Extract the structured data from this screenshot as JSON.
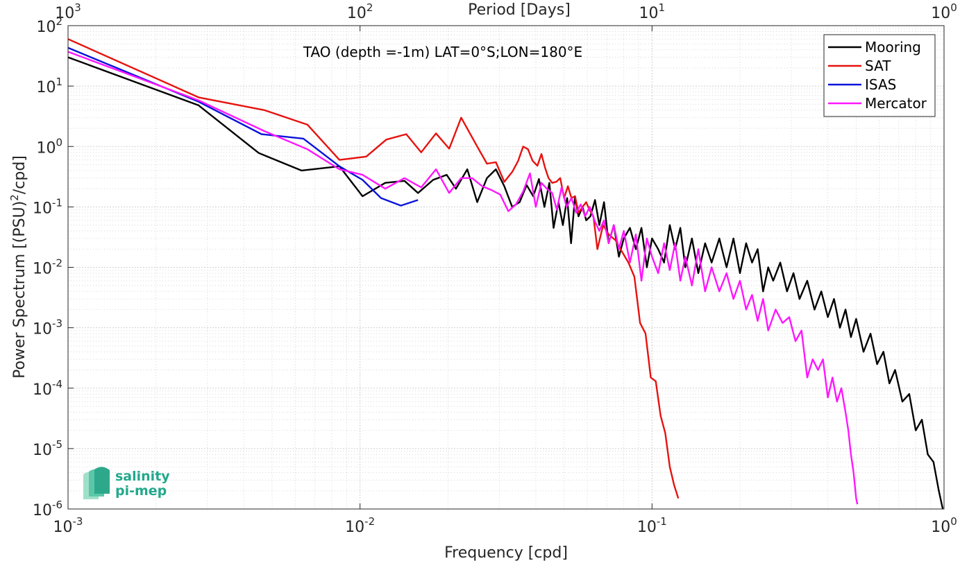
{
  "chart_data": {
    "type": "line",
    "title": "TAO (depth =-1m) LAT=0°S;LON=180°E",
    "xlabel": "Frequency [cpd]",
    "ylabel": "Power Spectrum [(PSU)^2/cpd]",
    "top_xlabel": "Period [Days]",
    "x_scale": "log",
    "y_scale": "log",
    "xlim": [
      0.001,
      1
    ],
    "ylim": [
      1e-06,
      100
    ],
    "grid": true,
    "legend_position": "top-right",
    "x_ticks": [
      {
        "base": "10",
        "exp": "-3",
        "value": 0.001
      },
      {
        "base": "10",
        "exp": "-2",
        "value": 0.01
      },
      {
        "base": "10",
        "exp": "-1",
        "value": 0.1
      },
      {
        "base": "10",
        "exp": "0",
        "value": 1
      }
    ],
    "top_ticks": [
      {
        "base": "10",
        "exp": "3",
        "value": 1000
      },
      {
        "base": "10",
        "exp": "2",
        "value": 100
      },
      {
        "base": "10",
        "exp": "1",
        "value": 10
      },
      {
        "base": "10",
        "exp": "0",
        "value": 1
      }
    ],
    "y_ticks": [
      {
        "base": "10",
        "exp": "2",
        "value": 100
      },
      {
        "base": "10",
        "exp": "1",
        "value": 10
      },
      {
        "base": "10",
        "exp": "0",
        "value": 1
      },
      {
        "base": "10",
        "exp": "-1",
        "value": 0.1
      },
      {
        "base": "10",
        "exp": "-2",
        "value": 0.01
      },
      {
        "base": "10",
        "exp": "-3",
        "value": 0.001
      },
      {
        "base": "10",
        "exp": "-4",
        "value": 0.0001
      },
      {
        "base": "10",
        "exp": "-5",
        "value": 1e-05
      },
      {
        "base": "10",
        "exp": "-6",
        "value": 1e-06
      }
    ],
    "series": [
      {
        "name": "Mooring",
        "color": "#000000",
        "points": [
          [
            0.001,
            30
          ],
          [
            0.0028,
            4.8
          ],
          [
            0.0045,
            0.78
          ],
          [
            0.0063,
            0.4
          ],
          [
            0.0085,
            0.47
          ],
          [
            0.0102,
            0.15
          ],
          [
            0.0122,
            0.25
          ],
          [
            0.0142,
            0.27
          ],
          [
            0.0158,
            0.17
          ],
          [
            0.0178,
            0.28
          ],
          [
            0.0198,
            0.34
          ],
          [
            0.0213,
            0.2
          ],
          [
            0.0233,
            0.42
          ],
          [
            0.0252,
            0.12
          ],
          [
            0.0272,
            0.3
          ],
          [
            0.0292,
            0.42
          ],
          [
            0.0312,
            0.22
          ],
          [
            0.0332,
            0.1
          ],
          [
            0.0352,
            0.12
          ],
          [
            0.0372,
            0.23
          ],
          [
            0.0392,
            0.15
          ],
          [
            0.041,
            0.29
          ],
          [
            0.0428,
            0.1
          ],
          [
            0.0445,
            0.25
          ],
          [
            0.046,
            0.045
          ],
          [
            0.0478,
            0.12
          ],
          [
            0.0495,
            0.05
          ],
          [
            0.0512,
            0.14
          ],
          [
            0.0528,
            0.025
          ],
          [
            0.0545,
            0.15
          ],
          [
            0.056,
            0.07
          ],
          [
            0.0578,
            0.1
          ],
          [
            0.0595,
            0.06
          ],
          [
            0.0615,
            0.07
          ],
          [
            0.0638,
            0.13
          ],
          [
            0.066,
            0.05
          ],
          [
            0.0685,
            0.12
          ],
          [
            0.071,
            0.025
          ],
          [
            0.074,
            0.05
          ],
          [
            0.077,
            0.015
          ],
          [
            0.08,
            0.03
          ],
          [
            0.084,
            0.045
          ],
          [
            0.088,
            0.02
          ],
          [
            0.092,
            0.045
          ],
          [
            0.096,
            0.01
          ],
          [
            0.1,
            0.03
          ],
          [
            0.105,
            0.02
          ],
          [
            0.11,
            0.012
          ],
          [
            0.115,
            0.05
          ],
          [
            0.12,
            0.02
          ],
          [
            0.125,
            0.045
          ],
          [
            0.13,
            0.01
          ],
          [
            0.137,
            0.03
          ],
          [
            0.144,
            0.008
          ],
          [
            0.152,
            0.025
          ],
          [
            0.16,
            0.012
          ],
          [
            0.17,
            0.03
          ],
          [
            0.18,
            0.01
          ],
          [
            0.19,
            0.03
          ],
          [
            0.2,
            0.008
          ],
          [
            0.21,
            0.025
          ],
          [
            0.22,
            0.012
          ],
          [
            0.23,
            0.02
          ],
          [
            0.24,
            0.004
          ],
          [
            0.25,
            0.01
          ],
          [
            0.26,
            0.006
          ],
          [
            0.275,
            0.012
          ],
          [
            0.29,
            0.004
          ],
          [
            0.305,
            0.008
          ],
          [
            0.32,
            0.003
          ],
          [
            0.34,
            0.006
          ],
          [
            0.36,
            0.002
          ],
          [
            0.38,
            0.004
          ],
          [
            0.4,
            0.0015
          ],
          [
            0.42,
            0.003
          ],
          [
            0.44,
            0.001
          ],
          [
            0.46,
            0.002
          ],
          [
            0.48,
            0.0007
          ],
          [
            0.5,
            0.0014
          ],
          [
            0.53,
            0.0004
          ],
          [
            0.56,
            0.0008
          ],
          [
            0.59,
            0.00025
          ],
          [
            0.62,
            0.0004
          ],
          [
            0.65,
            0.00012
          ],
          [
            0.68,
            0.0002
          ],
          [
            0.72,
            6e-05
          ],
          [
            0.76,
            8e-05
          ],
          [
            0.8,
            2e-05
          ],
          [
            0.84,
            3e-05
          ],
          [
            0.88,
            8e-06
          ],
          [
            0.92,
            6e-06
          ],
          [
            0.96,
            2e-06
          ],
          [
            0.99,
            1e-06
          ]
        ]
      },
      {
        "name": "SAT",
        "color": "#e6120e",
        "points": [
          [
            0.001,
            60
          ],
          [
            0.0028,
            6.5
          ],
          [
            0.0047,
            4
          ],
          [
            0.0066,
            2.3
          ],
          [
            0.0085,
            0.6
          ],
          [
            0.0105,
            0.68
          ],
          [
            0.0123,
            1.3
          ],
          [
            0.0144,
            1.6
          ],
          [
            0.0162,
            0.8
          ],
          [
            0.0182,
            1.65
          ],
          [
            0.0202,
            0.92
          ],
          [
            0.0222,
            3.0
          ],
          [
            0.0252,
            1.0
          ],
          [
            0.0272,
            0.52
          ],
          [
            0.0292,
            0.55
          ],
          [
            0.0312,
            0.26
          ],
          [
            0.0332,
            0.38
          ],
          [
            0.0348,
            0.58
          ],
          [
            0.0362,
            1.0
          ],
          [
            0.0376,
            0.9
          ],
          [
            0.039,
            0.58
          ],
          [
            0.0405,
            0.48
          ],
          [
            0.0418,
            0.75
          ],
          [
            0.043,
            0.45
          ],
          [
            0.0442,
            0.3
          ],
          [
            0.0455,
            0.25
          ],
          [
            0.047,
            0.26
          ],
          [
            0.0485,
            0.3
          ],
          [
            0.05,
            0.14
          ],
          [
            0.0515,
            0.22
          ],
          [
            0.053,
            0.14
          ],
          [
            0.0545,
            0.15
          ],
          [
            0.056,
            0.08
          ],
          [
            0.0578,
            0.1
          ],
          [
            0.0595,
            0.12
          ],
          [
            0.061,
            0.09
          ],
          [
            0.063,
            0.07
          ],
          [
            0.065,
            0.02
          ],
          [
            0.068,
            0.05
          ],
          [
            0.071,
            0.035
          ],
          [
            0.075,
            0.028
          ],
          [
            0.079,
            0.018
          ],
          [
            0.083,
            0.012
          ],
          [
            0.087,
            0.007
          ],
          [
            0.091,
            0.0012
          ],
          [
            0.095,
            0.0008
          ],
          [
            0.099,
            0.00015
          ],
          [
            0.103,
            0.00013
          ],
          [
            0.107,
            3.5e-05
          ],
          [
            0.111,
            1.8e-05
          ],
          [
            0.115,
            5e-06
          ],
          [
            0.119,
            2.5e-06
          ],
          [
            0.123,
            1.5e-06
          ]
        ]
      },
      {
        "name": "ISAS",
        "color": "#0a13d9",
        "points": [
          [
            0.001,
            43
          ],
          [
            0.0028,
            5.5
          ],
          [
            0.0046,
            1.6
          ],
          [
            0.0064,
            1.35
          ],
          [
            0.0085,
            0.47
          ],
          [
            0.0102,
            0.28
          ],
          [
            0.0118,
            0.14
          ],
          [
            0.0138,
            0.105
          ],
          [
            0.0158,
            0.13
          ]
        ]
      },
      {
        "name": "Mercator",
        "color": "#ff16ff",
        "points": [
          [
            0.001,
            37
          ],
          [
            0.0028,
            5.8
          ],
          [
            0.0047,
            1.8
          ],
          [
            0.0066,
            0.9
          ],
          [
            0.0085,
            0.42
          ],
          [
            0.0102,
            0.34
          ],
          [
            0.0122,
            0.2
          ],
          [
            0.0142,
            0.3
          ],
          [
            0.0162,
            0.21
          ],
          [
            0.0182,
            0.42
          ],
          [
            0.0202,
            0.17
          ],
          [
            0.0222,
            0.3
          ],
          [
            0.0242,
            0.3
          ],
          [
            0.0262,
            0.22
          ],
          [
            0.0282,
            0.19
          ],
          [
            0.0302,
            0.16
          ],
          [
            0.0322,
            0.085
          ],
          [
            0.0342,
            0.11
          ],
          [
            0.0362,
            0.18
          ],
          [
            0.0382,
            0.36
          ],
          [
            0.04,
            0.1
          ],
          [
            0.0418,
            0.25
          ],
          [
            0.0436,
            0.2
          ],
          [
            0.0455,
            0.17
          ],
          [
            0.0472,
            0.09
          ],
          [
            0.049,
            0.21
          ],
          [
            0.051,
            0.1
          ],
          [
            0.053,
            0.14
          ],
          [
            0.055,
            0.08
          ],
          [
            0.057,
            0.11
          ],
          [
            0.059,
            0.07
          ],
          [
            0.0612,
            0.1
          ],
          [
            0.0635,
            0.06
          ],
          [
            0.066,
            0.04
          ],
          [
            0.0685,
            0.06
          ],
          [
            0.071,
            0.025
          ],
          [
            0.074,
            0.05
          ],
          [
            0.077,
            0.02
          ],
          [
            0.08,
            0.04
          ],
          [
            0.084,
            0.012
          ],
          [
            0.088,
            0.035
          ],
          [
            0.092,
            0.006
          ],
          [
            0.096,
            0.03
          ],
          [
            0.1,
            0.015
          ],
          [
            0.105,
            0.008
          ],
          [
            0.11,
            0.025
          ],
          [
            0.115,
            0.009
          ],
          [
            0.12,
            0.025
          ],
          [
            0.125,
            0.006
          ],
          [
            0.13,
            0.015
          ],
          [
            0.137,
            0.005
          ],
          [
            0.144,
            0.02
          ],
          [
            0.152,
            0.004
          ],
          [
            0.16,
            0.01
          ],
          [
            0.17,
            0.004
          ],
          [
            0.18,
            0.008
          ],
          [
            0.19,
            0.003
          ],
          [
            0.2,
            0.006
          ],
          [
            0.21,
            0.002
          ],
          [
            0.22,
            0.0035
          ],
          [
            0.23,
            0.0013
          ],
          [
            0.24,
            0.003
          ],
          [
            0.25,
            0.0009
          ],
          [
            0.265,
            0.002
          ],
          [
            0.28,
            0.0012
          ],
          [
            0.295,
            0.0015
          ],
          [
            0.31,
            0.0006
          ],
          [
            0.325,
            0.0009
          ],
          [
            0.34,
            0.00015
          ],
          [
            0.355,
            0.0003
          ],
          [
            0.37,
            0.0002
          ],
          [
            0.385,
            0.0003
          ],
          [
            0.4,
            7e-05
          ],
          [
            0.415,
            0.00015
          ],
          [
            0.43,
            6e-05
          ],
          [
            0.445,
            0.0001
          ],
          [
            0.46,
            4e-05
          ],
          [
            0.47,
            2e-05
          ],
          [
            0.48,
            8e-06
          ],
          [
            0.49,
            4e-06
          ],
          [
            0.5,
            1.5e-06
          ],
          [
            0.505,
            1.2e-06
          ]
        ]
      }
    ]
  },
  "logo": {
    "line1": "salinity",
    "line2": "pi-mep",
    "color": "#24a88c"
  }
}
